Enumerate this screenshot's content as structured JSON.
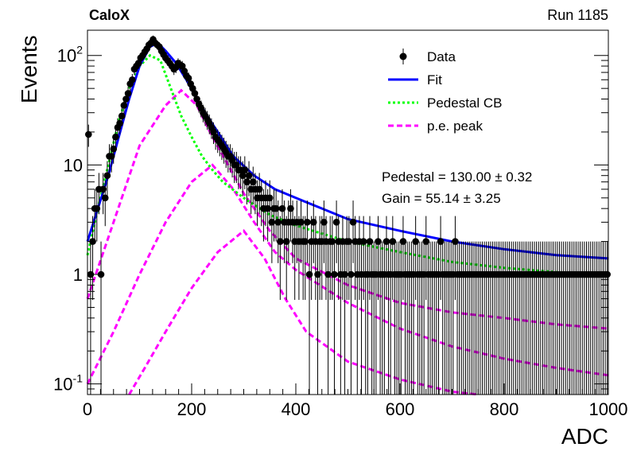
{
  "header": {
    "experiment": "CaloX",
    "run": "Run 1185"
  },
  "chart_data": {
    "type": "scatter",
    "xlabel": "ADC",
    "ylabel": "Events",
    "xlim": [
      0,
      1000
    ],
    "ylim": [
      0.08,
      170
    ],
    "yscale": "log",
    "x_ticks": [
      0,
      200,
      400,
      600,
      800,
      1000
    ],
    "y_ticks": [
      0.1,
      1,
      10,
      100
    ],
    "y_tick_labels": [
      "10^-1",
      "1",
      "10",
      "10^2"
    ],
    "legend": [
      {
        "name": "Data",
        "kind": "marker"
      },
      {
        "name": "Fit",
        "kind": "solid"
      },
      {
        "name": "Pedestal CB",
        "kind": "dotted"
      },
      {
        "name": "p.e. peak",
        "kind": "dashed"
      }
    ],
    "annotations": [
      "Pedestal = 130.00 ± 0.32",
      "Gain = 55.14 ± 3.25"
    ],
    "colors": {
      "fit": "#0000ff",
      "pedestal": "#00ff00",
      "pe": "#ff00ff",
      "data": "#000000"
    },
    "data_points": [
      [
        2,
        19
      ],
      [
        6,
        1
      ],
      [
        10,
        2
      ],
      [
        14,
        4
      ],
      [
        18,
        4
      ],
      [
        22,
        6
      ],
      [
        26,
        1
      ],
      [
        30,
        6
      ],
      [
        34,
        5
      ],
      [
        38,
        8
      ],
      [
        42,
        12
      ],
      [
        46,
        12
      ],
      [
        50,
        14
      ],
      [
        54,
        18
      ],
      [
        58,
        22
      ],
      [
        62,
        24
      ],
      [
        66,
        28
      ],
      [
        70,
        35
      ],
      [
        74,
        40
      ],
      [
        78,
        45
      ],
      [
        82,
        55
      ],
      [
        86,
        60
      ],
      [
        90,
        75
      ],
      [
        94,
        80
      ],
      [
        98,
        85
      ],
      [
        102,
        95
      ],
      [
        106,
        100
      ],
      [
        110,
        108
      ],
      [
        114,
        115
      ],
      [
        118,
        125
      ],
      [
        122,
        130
      ],
      [
        126,
        140
      ],
      [
        130,
        130
      ],
      [
        134,
        125
      ],
      [
        138,
        120
      ],
      [
        142,
        110
      ],
      [
        146,
        102
      ],
      [
        150,
        95
      ],
      [
        154,
        90
      ],
      [
        158,
        85
      ],
      [
        162,
        80
      ],
      [
        166,
        75
      ],
      [
        170,
        78
      ],
      [
        174,
        85
      ],
      [
        178,
        82
      ],
      [
        182,
        80
      ],
      [
        186,
        72
      ],
      [
        190,
        65
      ],
      [
        194,
        62
      ],
      [
        198,
        55
      ],
      [
        202,
        50
      ],
      [
        206,
        45
      ],
      [
        210,
        40
      ],
      [
        214,
        36
      ],
      [
        218,
        33
      ],
      [
        222,
        30
      ],
      [
        226,
        28
      ],
      [
        230,
        26
      ],
      [
        234,
        24
      ],
      [
        238,
        22
      ],
      [
        242,
        20
      ],
      [
        246,
        18
      ],
      [
        250,
        17
      ],
      [
        254,
        16
      ],
      [
        258,
        15
      ],
      [
        262,
        14
      ],
      [
        266,
        13
      ],
      [
        270,
        12
      ],
      [
        274,
        12
      ],
      [
        278,
        11
      ],
      [
        282,
        10
      ],
      [
        286,
        10
      ],
      [
        290,
        9
      ],
      [
        294,
        9
      ],
      [
        298,
        8
      ],
      [
        302,
        9
      ],
      [
        306,
        7
      ],
      [
        310,
        8
      ],
      [
        314,
        6
      ],
      [
        318,
        7
      ],
      [
        322,
        6
      ],
      [
        326,
        5
      ],
      [
        330,
        6
      ],
      [
        334,
        5
      ],
      [
        338,
        4
      ],
      [
        342,
        5
      ],
      [
        346,
        4
      ],
      [
        350,
        5
      ],
      [
        354,
        3
      ],
      [
        358,
        4
      ],
      [
        362,
        4
      ],
      [
        366,
        3
      ],
      [
        370,
        2
      ],
      [
        374,
        4
      ],
      [
        378,
        3
      ],
      [
        382,
        2
      ],
      [
        386,
        3
      ],
      [
        390,
        4
      ],
      [
        394,
        3
      ],
      [
        398,
        2
      ],
      [
        402,
        3
      ],
      [
        406,
        2
      ],
      [
        410,
        3
      ],
      [
        414,
        2
      ],
      [
        418,
        2
      ],
      [
        422,
        3
      ],
      [
        426,
        1
      ],
      [
        430,
        2
      ],
      [
        434,
        3
      ],
      [
        438,
        2
      ],
      [
        442,
        1
      ],
      [
        446,
        2
      ],
      [
        450,
        2
      ],
      [
        454,
        3
      ],
      [
        458,
        2
      ],
      [
        462,
        1
      ],
      [
        466,
        2
      ],
      [
        470,
        2
      ],
      [
        474,
        1
      ],
      [
        478,
        3
      ],
      [
        482,
        2
      ],
      [
        486,
        1
      ],
      [
        490,
        2
      ],
      [
        494,
        1
      ],
      [
        498,
        2
      ],
      [
        502,
        2
      ],
      [
        506,
        1
      ],
      [
        510,
        3
      ],
      [
        514,
        2
      ],
      [
        518,
        1
      ],
      [
        522,
        2
      ],
      [
        526,
        1
      ],
      [
        530,
        2
      ],
      [
        534,
        1
      ],
      [
        538,
        1
      ],
      [
        542,
        2
      ],
      [
        546,
        1
      ],
      [
        550,
        1
      ],
      [
        554,
        1
      ],
      [
        558,
        2
      ],
      [
        562,
        1
      ],
      [
        566,
        1
      ],
      [
        570,
        1
      ],
      [
        574,
        2
      ],
      [
        578,
        1
      ],
      [
        582,
        1
      ],
      [
        586,
        2
      ],
      [
        590,
        1
      ],
      [
        594,
        1
      ],
      [
        598,
        1
      ],
      [
        602,
        1
      ],
      [
        606,
        2
      ],
      [
        610,
        1
      ],
      [
        614,
        1
      ],
      [
        618,
        1
      ],
      [
        622,
        1
      ],
      [
        626,
        1
      ],
      [
        630,
        2
      ],
      [
        634,
        1
      ],
      [
        638,
        1
      ],
      [
        642,
        1
      ],
      [
        646,
        1
      ],
      [
        650,
        2
      ],
      [
        654,
        1
      ],
      [
        658,
        1
      ],
      [
        662,
        1
      ],
      [
        666,
        1
      ],
      [
        670,
        1
      ],
      [
        674,
        1
      ],
      [
        678,
        2
      ],
      [
        682,
        1
      ],
      [
        686,
        1
      ],
      [
        690,
        1
      ],
      [
        694,
        1
      ],
      [
        698,
        1
      ],
      [
        702,
        1
      ],
      [
        706,
        2
      ],
      [
        710,
        1
      ],
      [
        714,
        1
      ],
      [
        718,
        1
      ],
      [
        722,
        1
      ],
      [
        726,
        1
      ],
      [
        730,
        1
      ],
      [
        734,
        1
      ],
      [
        738,
        1
      ],
      [
        742,
        1
      ],
      [
        746,
        1
      ],
      [
        750,
        1
      ],
      [
        754,
        1
      ],
      [
        758,
        1
      ],
      [
        762,
        1
      ],
      [
        766,
        1
      ],
      [
        770,
        1
      ],
      [
        774,
        1
      ],
      [
        778,
        1
      ],
      [
        782,
        1
      ],
      [
        786,
        1
      ],
      [
        790,
        1
      ],
      [
        794,
        1
      ],
      [
        798,
        1
      ],
      [
        802,
        1
      ],
      [
        806,
        1
      ],
      [
        810,
        1
      ],
      [
        814,
        1
      ],
      [
        818,
        1
      ],
      [
        822,
        1
      ],
      [
        826,
        1
      ],
      [
        830,
        1
      ],
      [
        834,
        1
      ],
      [
        838,
        1
      ],
      [
        842,
        1
      ],
      [
        846,
        1
      ],
      [
        850,
        1
      ],
      [
        854,
        1
      ],
      [
        858,
        1
      ],
      [
        862,
        1
      ],
      [
        866,
        1
      ],
      [
        870,
        1
      ],
      [
        874,
        1
      ],
      [
        878,
        1
      ],
      [
        882,
        1
      ],
      [
        886,
        1
      ],
      [
        890,
        1
      ],
      [
        894,
        1
      ],
      [
        898,
        1
      ],
      [
        902,
        1
      ],
      [
        906,
        1
      ],
      [
        910,
        1
      ],
      [
        914,
        1
      ],
      [
        918,
        1
      ],
      [
        922,
        1
      ],
      [
        926,
        1
      ],
      [
        930,
        1
      ],
      [
        934,
        1
      ],
      [
        938,
        1
      ],
      [
        942,
        1
      ],
      [
        946,
        1
      ],
      [
        950,
        1
      ],
      [
        954,
        1
      ],
      [
        958,
        1
      ],
      [
        962,
        1
      ],
      [
        966,
        1
      ],
      [
        970,
        1
      ],
      [
        974,
        1
      ],
      [
        978,
        1
      ],
      [
        982,
        1
      ],
      [
        986,
        1
      ],
      [
        990,
        1
      ],
      [
        994,
        1
      ],
      [
        998,
        1
      ]
    ],
    "fit_curve": [
      [
        0,
        2
      ],
      [
        20,
        4
      ],
      [
        40,
        8
      ],
      [
        60,
        18
      ],
      [
        80,
        40
      ],
      [
        100,
        80
      ],
      [
        120,
        120
      ],
      [
        135,
        130
      ],
      [
        150,
        110
      ],
      [
        170,
        85
      ],
      [
        190,
        60
      ],
      [
        210,
        40
      ],
      [
        230,
        28
      ],
      [
        250,
        20
      ],
      [
        280,
        12
      ],
      [
        320,
        8
      ],
      [
        360,
        6
      ],
      [
        400,
        5
      ],
      [
        450,
        4
      ],
      [
        500,
        3.2
      ],
      [
        600,
        2.5
      ],
      [
        700,
        2
      ],
      [
        800,
        1.7
      ],
      [
        900,
        1.5
      ],
      [
        1000,
        1.4
      ]
    ],
    "pedestal_curve": [
      [
        0,
        1.5
      ],
      [
        20,
        4
      ],
      [
        40,
        10
      ],
      [
        60,
        25
      ],
      [
        80,
        50
      ],
      [
        100,
        80
      ],
      [
        120,
        100
      ],
      [
        140,
        90
      ],
      [
        160,
        50
      ],
      [
        180,
        28
      ],
      [
        200,
        18
      ],
      [
        220,
        12
      ],
      [
        240,
        9
      ],
      [
        260,
        7
      ],
      [
        300,
        5
      ],
      [
        350,
        3.5
      ],
      [
        400,
        2.8
      ],
      [
        500,
        2
      ],
      [
        600,
        1.6
      ],
      [
        700,
        1.3
      ],
      [
        800,
        1.15
      ],
      [
        900,
        1.05
      ],
      [
        1000,
        1
      ]
    ],
    "pe_peaks": [
      [
        [
          0,
          0.6
        ],
        [
          50,
          3
        ],
        [
          100,
          15
        ],
        [
          150,
          35
        ],
        [
          180,
          48
        ],
        [
          210,
          35
        ],
        [
          240,
          18
        ],
        [
          270,
          10
        ],
        [
          300,
          5.5
        ],
        [
          350,
          2.5
        ],
        [
          400,
          1.4
        ],
        [
          500,
          0.8
        ],
        [
          600,
          0.55
        ],
        [
          700,
          0.45
        ],
        [
          800,
          0.4
        ],
        [
          900,
          0.35
        ],
        [
          1000,
          0.32
        ]
      ],
      [
        [
          0,
          0.1
        ],
        [
          50,
          0.3
        ],
        [
          100,
          1
        ],
        [
          150,
          3
        ],
        [
          200,
          7
        ],
        [
          240,
          10
        ],
        [
          280,
          6
        ],
        [
          320,
          3
        ],
        [
          360,
          1.6
        ],
        [
          400,
          1.1
        ],
        [
          500,
          0.55
        ],
        [
          600,
          0.32
        ],
        [
          700,
          0.22
        ],
        [
          800,
          0.17
        ],
        [
          900,
          0.14
        ],
        [
          1000,
          0.12
        ]
      ],
      [
        [
          80,
          0.08
        ],
        [
          110,
          0.14
        ],
        [
          150,
          0.3
        ],
        [
          200,
          0.75
        ],
        [
          250,
          1.6
        ],
        [
          300,
          2.5
        ],
        [
          340,
          1.4
        ],
        [
          380,
          0.6
        ],
        [
          420,
          0.3
        ],
        [
          500,
          0.16
        ],
        [
          600,
          0.11
        ],
        [
          700,
          0.085
        ],
        [
          750,
          0.08
        ]
      ]
    ]
  }
}
